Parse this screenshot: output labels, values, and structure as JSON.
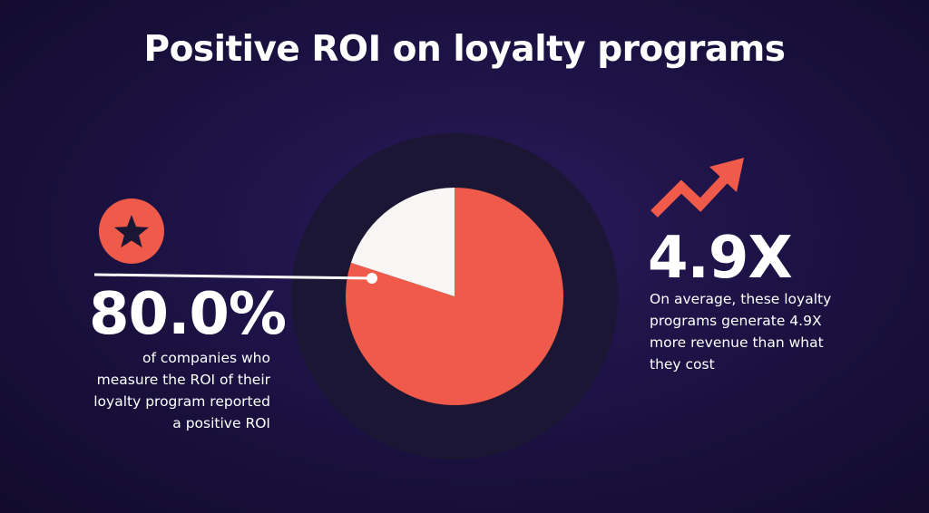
{
  "title": "Positive ROI on loyalty programs",
  "colors": {
    "background": "#1a1140",
    "ring": "#1b1633",
    "accent": "#f05a4a",
    "remainder": "#f8f5f5",
    "text": "#ffffff"
  },
  "left_stat": {
    "value": "80.0%",
    "caption_lines": [
      "of companies who",
      "measure the ROI of their",
      "loyalty program reported",
      "a positive ROI"
    ],
    "icon": "star-icon"
  },
  "right_stat": {
    "value": "4.9X",
    "caption_lines": [
      "On average, these loyalty",
      "programs generate 4.9X",
      "more revenue than what",
      "they cost"
    ],
    "icon": "trend-up-arrow-icon"
  },
  "chart_data": {
    "type": "pie",
    "title": "Positive ROI on loyalty programs",
    "slices": [
      {
        "label": "positive ROI",
        "value": 80.0,
        "color": "#f05a4a"
      },
      {
        "label": "",
        "value": 20.0,
        "color": "#f8f5f5"
      }
    ],
    "legend": "none"
  }
}
